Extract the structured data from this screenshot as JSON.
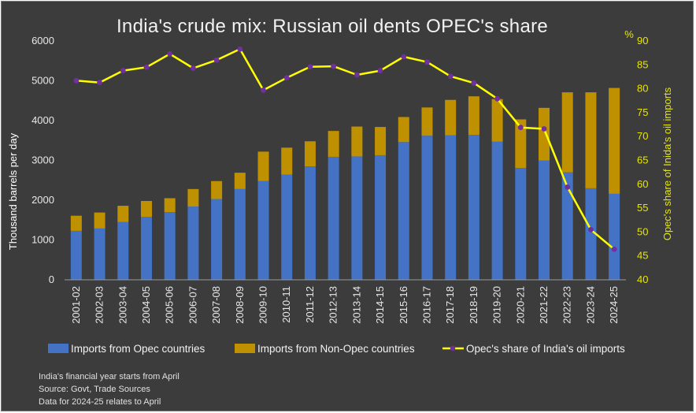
{
  "chart_data": {
    "type": "bar",
    "title": "India's crude mix: Russian oil dents OPEC's share",
    "categories": [
      "2001-02",
      "2002-03",
      "2003-04",
      "2004-05",
      "2005-06",
      "2006-07",
      "2007-08",
      "2008-09",
      "2009-10",
      "2010-11",
      "2011-12",
      "2012-13",
      "2013-14",
      "2014-15",
      "2015-16",
      "2016-17",
      "2017-18",
      "2018-19",
      "2019-20",
      "2020-21",
      "2021-22",
      "2022-23",
      "2023-24",
      "2024-25"
    ],
    "stacked": true,
    "series": [
      {
        "name": "Imports from Opec countries",
        "type": "bar",
        "axis": "left",
        "color": "#4472c4",
        "values": [
          1230,
          1290,
          1450,
          1580,
          1700,
          1840,
          2030,
          2280,
          2480,
          2640,
          2850,
          3090,
          3100,
          3130,
          3460,
          3620,
          3630,
          3640,
          3470,
          2810,
          3000,
          2700,
          2300,
          2160
        ]
      },
      {
        "name": "Imports from Non-Opec countries",
        "type": "bar",
        "axis": "left",
        "color": "#bf9000",
        "values": [
          380,
          400,
          410,
          400,
          350,
          440,
          450,
          410,
          740,
          680,
          630,
          650,
          750,
          710,
          630,
          710,
          890,
          970,
          1070,
          1220,
          1320,
          2010,
          2410,
          2660
        ]
      },
      {
        "name": "Opec's share of India's oil imports",
        "type": "line",
        "axis": "right",
        "color": "#ffff00",
        "marker_color": "#7030a0",
        "values": [
          81.7,
          81.3,
          83.8,
          84.5,
          87.3,
          84.3,
          86,
          88.3,
          79.7,
          82.3,
          84.6,
          84.7,
          82.9,
          83.8,
          86.7,
          85.6,
          82.6,
          81.2,
          77.9,
          71.9,
          71.6,
          59.4,
          50.5,
          46.4
        ]
      }
    ],
    "ylabel": "Thousand barrels per day",
    "ylim": [
      0,
      6000
    ],
    "yticks": [
      "0",
      "1000",
      "2000",
      "3000",
      "4000",
      "5000",
      "6000"
    ],
    "y2label": "Opec's share of Inida's oil imports",
    "y2unit": "%",
    "y2lim": [
      40,
      90
    ],
    "y2ticks": [
      "40",
      "45",
      "50",
      "55",
      "60",
      "65",
      "70",
      "75",
      "80",
      "85",
      "90"
    ],
    "grid": false,
    "legend_position": "bottom",
    "notes": [
      "India's financial year starts from April",
      "Source: Govt, Trade Sources",
      "Data for 2024-25 relates to April"
    ]
  },
  "colors": {
    "background": "#3c3c3c",
    "opec": "#4472c4",
    "non_opec": "#bf9000",
    "share_line": "#ffff00",
    "marker": "#7030a0"
  }
}
